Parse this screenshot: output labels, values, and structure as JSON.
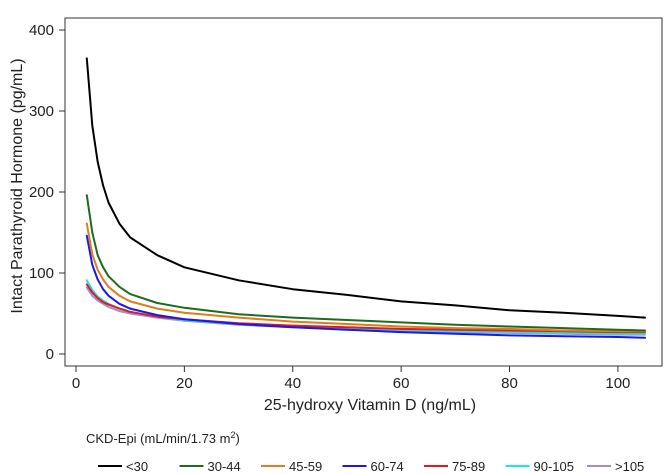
{
  "chart_data": {
    "type": "line",
    "title": "",
    "xlabel": "25-hydroxy Vitamin D (ng/mL)",
    "ylabel": "Intact Parathyroid Hormone (pg/mL)",
    "xlim": [
      0,
      105
    ],
    "ylim": [
      0,
      400
    ],
    "xticks": [
      0,
      20,
      40,
      60,
      80,
      100
    ],
    "yticks": [
      0,
      100,
      200,
      300,
      400
    ],
    "grid": false,
    "legend": {
      "title": "CKD-Epi (mL/min/1.73 m",
      "title_sup": "2",
      "title_suffix": ")",
      "placement": "bottom"
    },
    "x": [
      2,
      3,
      4,
      5,
      6,
      8,
      10,
      15,
      20,
      30,
      40,
      50,
      60,
      70,
      80,
      90,
      100,
      105
    ],
    "series": [
      {
        "name": "<30",
        "color": "#000000",
        "values": [
          365,
          282,
          237,
          208,
          187,
          161,
          144,
          122,
          107,
          91,
          80,
          73,
          65,
          60,
          54,
          51,
          47,
          45
        ]
      },
      {
        "name": "30-44",
        "color": "#1e6b1e",
        "values": [
          196,
          150,
          122,
          107,
          96,
          83,
          74,
          63,
          57,
          49,
          45,
          42,
          39,
          36,
          34,
          32,
          30,
          29
        ]
      },
      {
        "name": "45-59",
        "color": "#e07b1e",
        "values": [
          161,
          123,
          104,
          92,
          83,
          72,
          65,
          56,
          51,
          45,
          40,
          37,
          34,
          32,
          31,
          29,
          28,
          28
        ]
      },
      {
        "name": "60-74",
        "color": "#1a1ae6",
        "values": [
          146,
          110,
          92,
          80,
          72,
          62,
          56,
          48,
          43,
          37,
          33,
          30,
          27,
          25,
          23,
          22,
          21,
          20
        ]
      },
      {
        "name": "75-89",
        "color": "#e61a1a",
        "values": [
          86,
          76,
          69,
          64,
          61,
          56,
          52,
          46,
          43,
          38,
          35,
          33,
          31,
          30,
          29,
          28,
          27,
          27
        ]
      },
      {
        "name": "90-105",
        "color": "#1ae6e6",
        "values": [
          91,
          79,
          71,
          66,
          62,
          56,
          52,
          46,
          42,
          37,
          34,
          32,
          30,
          28,
          27,
          26,
          25,
          25
        ]
      },
      {
        "name": ">105",
        "color": "#9a8fd9",
        "values": [
          82,
          72,
          66,
          62,
          58,
          53,
          50,
          45,
          41,
          36,
          33,
          31,
          29,
          27,
          26,
          25,
          24,
          24
        ]
      }
    ]
  }
}
